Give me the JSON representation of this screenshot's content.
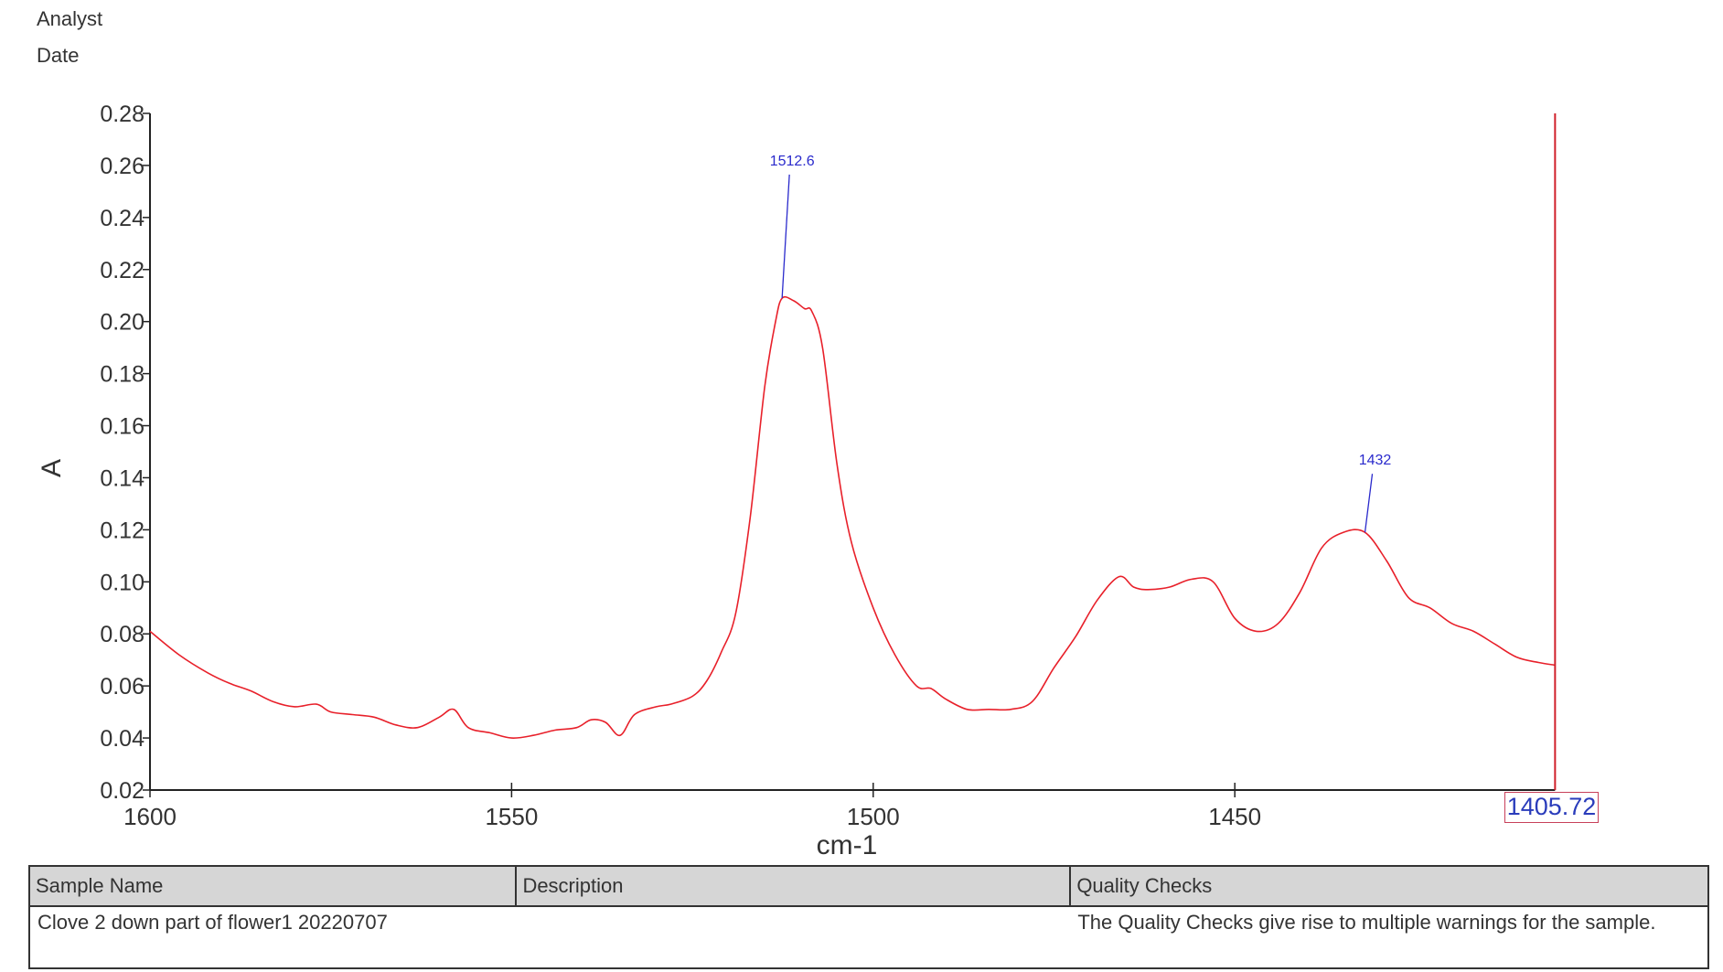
{
  "header": {
    "analyst_label": "Analyst",
    "date_label": "Date",
    "timestamp_partial": "..."
  },
  "chart_data": {
    "type": "line",
    "title": "",
    "xlabel": "cm-1",
    "ylabel": "A",
    "xlim": [
      1600,
      1405.72
    ],
    "ylim": [
      0.02,
      0.28
    ],
    "x_reversed": true,
    "grid": false,
    "x_ticks": [
      "1600",
      "1550",
      "1500",
      "1450"
    ],
    "y_ticks": [
      "0.28",
      "0.26",
      "0.24",
      "0.22",
      "0.20",
      "0.18",
      "0.16",
      "0.14",
      "0.12",
      "0.10",
      "0.08",
      "0.06",
      "0.04",
      "0.02"
    ],
    "series": [
      {
        "name": "Clove 2 down part of flower1 20220707",
        "color": "#e8202a",
        "x": [
          1600,
          1596,
          1592,
          1589,
          1586,
          1583,
          1580,
          1577,
          1575,
          1572,
          1569,
          1566,
          1563,
          1560,
          1558,
          1556,
          1553,
          1550,
          1547,
          1544,
          1541,
          1539,
          1537,
          1535,
          1533,
          1530,
          1528,
          1525,
          1523,
          1521,
          1519,
          1517,
          1515,
          1513.5,
          1512.6,
          1511,
          1509.5,
          1508.5,
          1507,
          1505,
          1503,
          1500,
          1497,
          1494,
          1492,
          1490,
          1487,
          1484,
          1481,
          1478,
          1475,
          1472,
          1469,
          1466,
          1464,
          1462,
          1459,
          1456,
          1453,
          1450,
          1447,
          1444,
          1441,
          1438,
          1435,
          1432,
          1429,
          1426,
          1423,
          1420,
          1417,
          1414,
          1411,
          1408,
          1405.72
        ],
        "y": [
          0.081,
          0.072,
          0.065,
          0.061,
          0.058,
          0.054,
          0.052,
          0.053,
          0.05,
          0.049,
          0.048,
          0.045,
          0.044,
          0.048,
          0.051,
          0.044,
          0.042,
          0.04,
          0.041,
          0.043,
          0.044,
          0.047,
          0.046,
          0.041,
          0.049,
          0.052,
          0.053,
          0.056,
          0.062,
          0.073,
          0.088,
          0.125,
          0.175,
          0.2,
          0.209,
          0.208,
          0.205,
          0.204,
          0.19,
          0.145,
          0.115,
          0.09,
          0.072,
          0.06,
          0.059,
          0.055,
          0.051,
          0.051,
          0.051,
          0.054,
          0.067,
          0.079,
          0.093,
          0.102,
          0.098,
          0.097,
          0.098,
          0.101,
          0.1,
          0.086,
          0.081,
          0.084,
          0.096,
          0.113,
          0.119,
          0.119,
          0.108,
          0.094,
          0.09,
          0.084,
          0.081,
          0.076,
          0.071,
          0.069,
          0.068
        ]
      }
    ],
    "annotations": [
      {
        "text": "1512.6",
        "x": 1512.6,
        "y": 0.209,
        "label_y": 0.26,
        "color": "#2a2acc"
      },
      {
        "text": "1432",
        "x": 1432.0,
        "y": 0.119,
        "label_y": 0.145,
        "color": "#2a2acc"
      }
    ],
    "cursor": {
      "x": 1405.72,
      "label": "1405.72",
      "color": "#d0202a"
    }
  },
  "table": {
    "headers": [
      "Sample Name",
      "Description",
      "Quality Checks"
    ],
    "rows": [
      [
        "Clove 2 down part of flower1 20220707",
        "",
        "The Quality Checks give rise to multiple warnings for the sample."
      ]
    ]
  }
}
